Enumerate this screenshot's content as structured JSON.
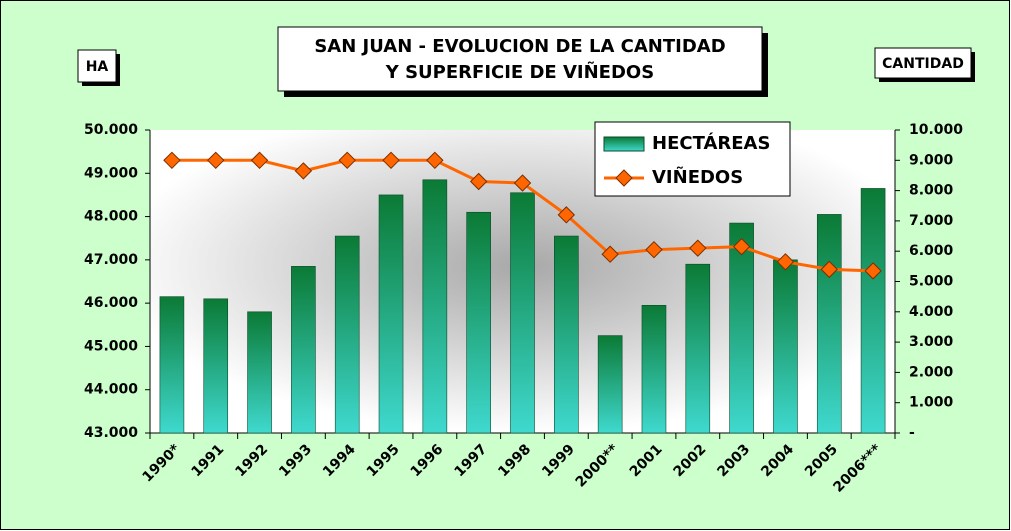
{
  "chart_data": {
    "type": "bar-line",
    "title": [
      "SAN JUAN - EVOLUCION DE LA CANTIDAD",
      "Y SUPERFICIE DE VIÑEDOS"
    ],
    "ylabel": "HA",
    "y2label": "CANTIDAD",
    "categories": [
      "1990*",
      "1991",
      "1992",
      "1993",
      "1994",
      "1995",
      "1996",
      "1997",
      "1998",
      "1999",
      "2000**",
      "2001",
      "2002",
      "2003",
      "2004",
      "2005",
      "2006***"
    ],
    "series": [
      {
        "name": "HECTÁREAS",
        "type": "bar",
        "color": "#0e8a3e",
        "axis": "y",
        "values": [
          46150,
          46100,
          45800,
          46850,
          47550,
          48500,
          48850,
          48100,
          48550,
          47550,
          45250,
          45950,
          46900,
          47850,
          47000,
          48050,
          48650
        ]
      },
      {
        "name": "VIÑEDOS",
        "type": "line",
        "color": "#ff6600",
        "axis": "y2",
        "values": [
          9000,
          9000,
          9000,
          8650,
          9000,
          9000,
          9000,
          8300,
          8250,
          7200,
          5900,
          6050,
          6100,
          6150,
          5650,
          5400,
          5350
        ]
      }
    ],
    "ylim": [
      43000,
      50000
    ],
    "yticks": [
      {
        "value": 43000,
        "label": "43.000"
      },
      {
        "value": 44000,
        "label": "44.000"
      },
      {
        "value": 45000,
        "label": "45.000"
      },
      {
        "value": 46000,
        "label": "46.000"
      },
      {
        "value": 47000,
        "label": "47.000"
      },
      {
        "value": 48000,
        "label": "48.000"
      },
      {
        "value": 49000,
        "label": "49.000"
      },
      {
        "value": 50000,
        "label": "50.000"
      }
    ],
    "y2lim": [
      0,
      10000
    ],
    "y2ticks": [
      {
        "value": 0,
        "label": "-"
      },
      {
        "value": 1000,
        "label": "1.000"
      },
      {
        "value": 2000,
        "label": "2.000"
      },
      {
        "value": 3000,
        "label": "3.000"
      },
      {
        "value": 4000,
        "label": "4.000"
      },
      {
        "value": 5000,
        "label": "5.000"
      },
      {
        "value": 6000,
        "label": "6.000"
      },
      {
        "value": 7000,
        "label": "7.000"
      },
      {
        "value": 8000,
        "label": "8.000"
      },
      {
        "value": 9000,
        "label": "9.000"
      },
      {
        "value": 10000,
        "label": "10.000"
      }
    ],
    "legend": "top-right"
  }
}
